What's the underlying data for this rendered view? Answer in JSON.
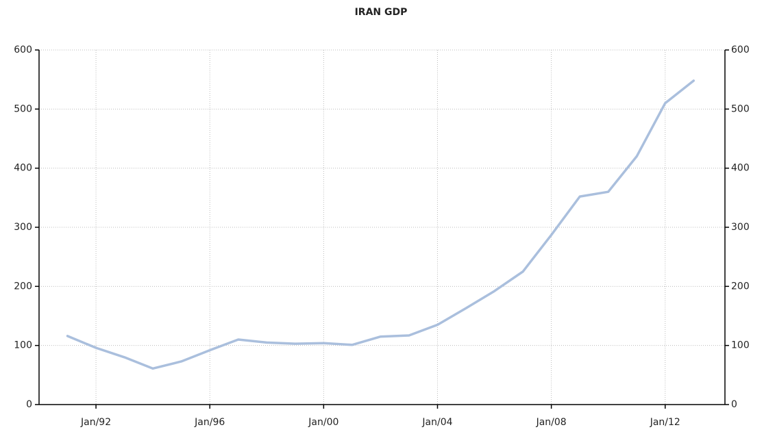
{
  "chart_data": {
    "type": "line",
    "title": "IRAN GDP",
    "x": [
      1991,
      1992,
      1993,
      1994,
      1995,
      1996,
      1997,
      1998,
      1999,
      2000,
      2001,
      2002,
      2003,
      2004,
      2005,
      2006,
      2007,
      2008,
      2009,
      2010,
      2011,
      2012,
      2013
    ],
    "series": [
      {
        "name": "GDP",
        "color": "#aabfdd",
        "values": [
          116,
          96,
          80,
          61,
          73,
          92,
          110,
          105,
          103,
          104,
          101,
          115,
          117,
          135,
          163,
          192,
          225,
          287,
          352,
          360,
          420,
          510,
          548
        ]
      }
    ],
    "xlim": [
      1990,
      2014.1
    ],
    "xticks": [
      {
        "value": 1992,
        "label": "Jan/92"
      },
      {
        "value": 1996,
        "label": "Jan/96"
      },
      {
        "value": 2000,
        "label": "Jan/00"
      },
      {
        "value": 2004,
        "label": "Jan/04"
      },
      {
        "value": 2008,
        "label": "Jan/08"
      },
      {
        "value": 2012,
        "label": "Jan/12"
      }
    ],
    "ylim": [
      0,
      600
    ],
    "yticks": [
      0,
      100,
      200,
      300,
      400,
      500,
      600
    ],
    "y2lim": [
      0,
      600
    ],
    "y2ticks": [
      0,
      100,
      200,
      300,
      400,
      500,
      600
    ],
    "grid": true
  }
}
